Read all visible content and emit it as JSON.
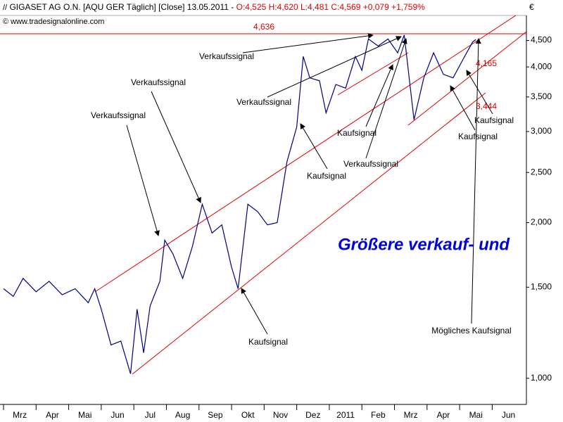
{
  "chart_data": {
    "type": "line",
    "title": "GIGASET AG O.N. [AQU GER  Täglich] [Close] 13.05.2011 -",
    "subtitle": "O:4,525 H:4,620 L:4,481 C:4,569 +0,079 +1,759%",
    "source": "© www.tradesignalonline.com",
    "y_axis_label": "€",
    "log_scale": true,
    "color": "#000080",
    "x": [
      0,
      0.3,
      0.6,
      1.0,
      1.4,
      1.8,
      2.2,
      2.6,
      2.8,
      3.0,
      3.3,
      3.6,
      3.9,
      4.1,
      4.3,
      4.5,
      4.8,
      4.95,
      5.2,
      5.5,
      5.8,
      6.1,
      6.4,
      6.7,
      7.0,
      7.2,
      7.5,
      7.8,
      8.1,
      8.4,
      8.7,
      9.0,
      9.2,
      9.4,
      9.7,
      9.9,
      10.2,
      10.5,
      10.8,
      11.0,
      11.2,
      11.5,
      11.8,
      12.1,
      12.3,
      12.6,
      12.9,
      13.2,
      13.5,
      13.8,
      14.1,
      14.4,
      14.5
    ],
    "values": [
      1.49,
      1.44,
      1.56,
      1.47,
      1.54,
      1.45,
      1.49,
      1.4,
      1.49,
      1.36,
      1.16,
      1.18,
      1.02,
      1.36,
      1.12,
      1.38,
      1.54,
      1.85,
      1.74,
      1.56,
      1.8,
      2.17,
      1.91,
      1.98,
      1.64,
      1.49,
      2.17,
      2.1,
      1.98,
      2.0,
      2.62,
      3.06,
      4.19,
      3.81,
      3.76,
      3.26,
      3.7,
      3.64,
      4.19,
      3.94,
      4.53,
      4.39,
      4.53,
      4.26,
      4.61,
      3.16,
      3.81,
      4.26,
      3.87,
      3.81,
      4.13,
      4.47,
      4.52
    ],
    "xlim": [
      0,
      16.05
    ],
    "ylim": [
      0.89,
      5.03
    ],
    "xticks": [
      {
        "value": 0,
        "label": "Mrz"
      },
      {
        "value": 1,
        "label": "Apr"
      },
      {
        "value": 2,
        "label": "Mai"
      },
      {
        "value": 3,
        "label": "Jun"
      },
      {
        "value": 4,
        "label": "Jul"
      },
      {
        "value": 5,
        "label": "Aug"
      },
      {
        "value": 6,
        "label": "Sep"
      },
      {
        "value": 7,
        "label": "Okt"
      },
      {
        "value": 8,
        "label": "Nov"
      },
      {
        "value": 9,
        "label": "Dez"
      },
      {
        "value": 10,
        "label": "2011"
      },
      {
        "value": 11,
        "label": "Feb"
      },
      {
        "value": 12,
        "label": "Mrz"
      },
      {
        "value": 13,
        "label": "Apr"
      },
      {
        "value": 14,
        "label": "Mai"
      },
      {
        "value": 15,
        "label": "Jun"
      }
    ],
    "yticks": [
      {
        "value": 1,
        "label": "1,000"
      },
      {
        "value": 1.5,
        "label": "1,500"
      },
      {
        "value": 2,
        "label": "2,000"
      },
      {
        "value": 2.5,
        "label": "2,500"
      },
      {
        "value": 3,
        "label": "3,000"
      },
      {
        "value": 3.5,
        "label": "3,500"
      },
      {
        "value": 4,
        "label": "4,000"
      },
      {
        "value": 4.5,
        "label": "4,500"
      }
    ],
    "hline": {
      "value": 4.636,
      "label": "4,636"
    },
    "line_labels": [
      "4,165",
      "3,444"
    ],
    "headline": "Größere verkauf- und",
    "annotations": [
      "Verkaufssignal",
      "Verkaufssignal",
      "Verkaufssignal",
      "Verkaufssignal",
      "Kaufsignal",
      "Kaufsignal",
      "Kaufsignal",
      "Verkaufssignal",
      "Kaufsignal",
      "Kaufsignal",
      "Mögliches Kaufsignal"
    ]
  }
}
